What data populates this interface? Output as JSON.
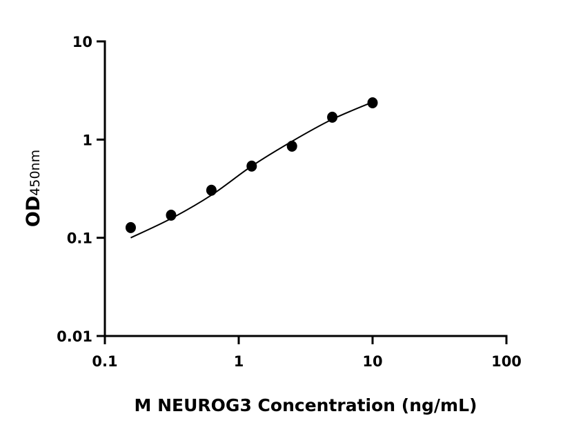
{
  "chart_data": {
    "type": "scatter",
    "title": "",
    "xlabel": "M NEUROG3 Concentration (ng/mL)",
    "ylabel_main": "OD",
    "ylabel_sub": "450nm",
    "x_scale": "log",
    "y_scale": "log",
    "xlim": [
      0.1,
      100
    ],
    "ylim": [
      0.01,
      10
    ],
    "x_ticks": [
      0.1,
      1,
      10,
      100
    ],
    "x_tick_labels": [
      "0.1",
      "1",
      "10",
      "100"
    ],
    "y_ticks": [
      0.01,
      0.1,
      1,
      10
    ],
    "y_tick_labels": [
      "0.01",
      "0.1",
      "1",
      "10"
    ],
    "grid": false,
    "points": {
      "x": [
        0.156,
        0.3125,
        0.625,
        1.25,
        2.5,
        5,
        10
      ],
      "y": [
        0.127,
        0.17,
        0.305,
        0.537,
        0.857,
        1.69,
        2.37
      ]
    },
    "fit_curve": {
      "x": [
        0.156,
        0.3125,
        0.625,
        1.25,
        2.5,
        5,
        10
      ],
      "y": [
        0.1,
        0.157,
        0.272,
        0.537,
        0.96,
        1.61,
        2.41
      ]
    },
    "colors": {
      "points": "#000000",
      "curve": "#000000",
      "axes": "#000000"
    }
  }
}
